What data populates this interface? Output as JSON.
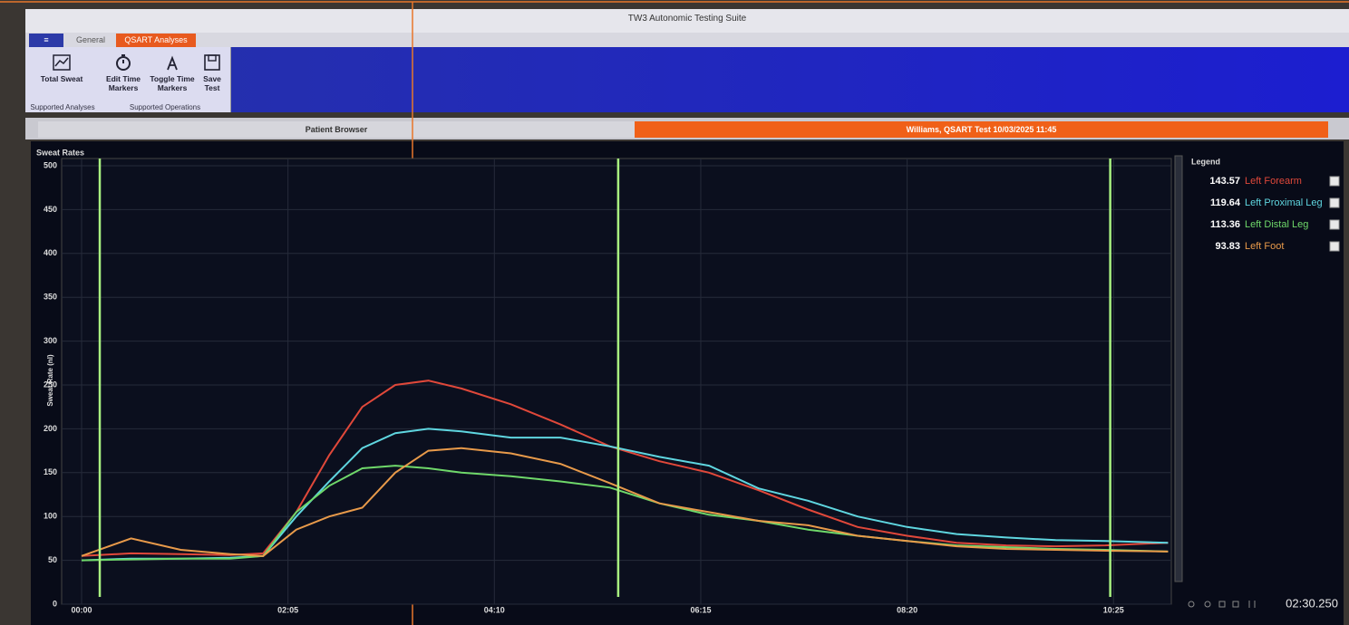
{
  "window": {
    "title": "TW3 Autonomic Testing Suite"
  },
  "ribbon": {
    "tabs": [
      "General",
      "QSART Analyses"
    ],
    "buttons": [
      "Total Sweat",
      "Edit Time Markers",
      "Toggle Time Markers",
      "Save Test"
    ],
    "groups": [
      "Supported Analyses",
      "Supported Operations"
    ]
  },
  "document_tabs": [
    "Patient Browser",
    "Williams, QSART Test 10/03/2025 11:45"
  ],
  "chart_data": {
    "type": "line",
    "title": "Sweat Rates",
    "y_label": "Sweat Rate (nl)",
    "legend_title": "Legend",
    "x": [
      0,
      30,
      60,
      90,
      110,
      130,
      150,
      170,
      190,
      210,
      230,
      260,
      290,
      320,
      350,
      380,
      410,
      440,
      470,
      500,
      530,
      560,
      590,
      620,
      658
    ],
    "xlim": [
      0,
      660
    ],
    "xticks": [
      {
        "value": 0,
        "label": "00:00"
      },
      {
        "value": 125,
        "label": "02:05"
      },
      {
        "value": 250,
        "label": "04:10"
      },
      {
        "value": 375,
        "label": "06:15"
      },
      {
        "value": 500,
        "label": "08:20"
      },
      {
        "value": 625,
        "label": "10:25"
      }
    ],
    "ylim": [
      0,
      500
    ],
    "yticks": [
      0,
      50,
      100,
      150,
      200,
      250,
      300,
      350,
      400,
      450,
      500
    ],
    "grid": true,
    "time_markers": [
      11,
      325,
      623
    ],
    "marker_color": "#a8f080",
    "series": [
      {
        "name": "Left Forearm",
        "color": "#e0483a",
        "legend_value": 143.57,
        "values": [
          55,
          58,
          57,
          56,
          58,
          105,
          170,
          225,
          250,
          255,
          246,
          228,
          205,
          180,
          163,
          150,
          130,
          108,
          88,
          78,
          70,
          67,
          66,
          67,
          70
        ]
      },
      {
        "name": "Left Proximal Leg",
        "color": "#5fd6e0",
        "legend_value": 119.64,
        "values": [
          50,
          52,
          52,
          53,
          55,
          100,
          140,
          178,
          195,
          200,
          197,
          190,
          190,
          180,
          168,
          158,
          132,
          118,
          100,
          88,
          80,
          76,
          73,
          72,
          70
        ]
      },
      {
        "name": "Left Distal Leg",
        "color": "#6fd86a",
        "legend_value": 113.36,
        "values": [
          50,
          51,
          52,
          52,
          55,
          105,
          135,
          155,
          158,
          155,
          150,
          146,
          140,
          133,
          115,
          102,
          95,
          85,
          78,
          72,
          67,
          65,
          63,
          62,
          60
        ]
      },
      {
        "name": "Left Foot",
        "color": "#e89a4a",
        "legend_value": 93.83,
        "values": [
          55,
          75,
          62,
          57,
          55,
          85,
          100,
          110,
          150,
          175,
          178,
          172,
          160,
          138,
          115,
          105,
          95,
          90,
          78,
          72,
          66,
          63,
          62,
          61,
          60
        ]
      }
    ]
  },
  "status": {
    "time": "02:30.250"
  }
}
